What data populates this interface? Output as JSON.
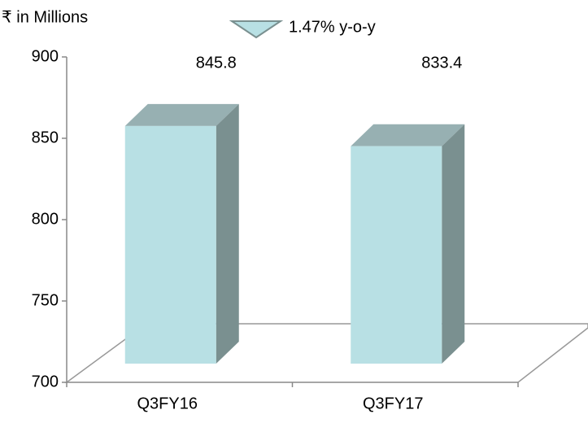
{
  "chart_data": {
    "type": "bar3d",
    "y_axis_label": "₹ in Millions",
    "annotation": "1.47% y-o-y",
    "categories": [
      "Q3FY16",
      "Q3FY17"
    ],
    "values": [
      845.8,
      833.4
    ],
    "color": "#b8e0e4",
    "ylim": [
      700,
      900
    ],
    "yticks": [
      700,
      750,
      800,
      850,
      900
    ],
    "grid": false
  }
}
